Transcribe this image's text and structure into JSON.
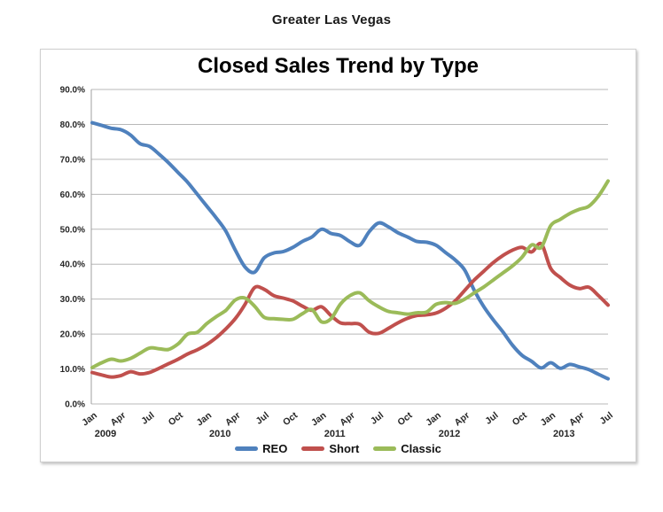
{
  "page": {
    "header_title": "Greater Las Vegas"
  },
  "chart": {
    "title": "Closed Sales Trend by Type",
    "grid_color": "#b8b8b8",
    "axis_color": "#9f9f9f"
  },
  "chart_data": {
    "type": "line",
    "title": "Closed Sales Trend by Type",
    "xlabel": "",
    "ylabel": "",
    "ylim": [
      0,
      90
    ],
    "y_tick_step": 10,
    "y_ticks": [
      "0.0%",
      "10.0%",
      "20.0%",
      "30.0%",
      "40.0%",
      "50.0%",
      "60.0%",
      "70.0%",
      "80.0%",
      "90.0%"
    ],
    "grid": true,
    "legend_position": "bottom",
    "x_tick_every": 3,
    "x_tick_labels": [
      "Jan",
      "Apr",
      "Jul",
      "Oct",
      "Jan",
      "Apr",
      "Jul",
      "Oct",
      "Jan",
      "Apr",
      "Jul",
      "Oct",
      "Jan",
      "Apr",
      "Jul",
      "Oct",
      "Jan",
      "Apr",
      "Jul"
    ],
    "year_labels": [
      {
        "label": "2009",
        "month_index": 0
      },
      {
        "label": "2010",
        "month_index": 12
      },
      {
        "label": "2011",
        "month_index": 24
      },
      {
        "label": "2012",
        "month_index": 36
      },
      {
        "label": "2013",
        "month_index": 48
      }
    ],
    "categories": [
      "Jan 2009",
      "Feb 2009",
      "Mar 2009",
      "Apr 2009",
      "May 2009",
      "Jun 2009",
      "Jul 2009",
      "Aug 2009",
      "Sep 2009",
      "Oct 2009",
      "Nov 2009",
      "Dec 2009",
      "Jan 2010",
      "Feb 2010",
      "Mar 2010",
      "Apr 2010",
      "May 2010",
      "Jun 2010",
      "Jul 2010",
      "Aug 2010",
      "Sep 2010",
      "Oct 2010",
      "Nov 2010",
      "Dec 2010",
      "Jan 2011",
      "Feb 2011",
      "Mar 2011",
      "Apr 2011",
      "May 2011",
      "Jun 2011",
      "Jul 2011",
      "Aug 2011",
      "Sep 2011",
      "Oct 2011",
      "Nov 2011",
      "Dec 2011",
      "Jan 2012",
      "Feb 2012",
      "Mar 2012",
      "Apr 2012",
      "May 2012",
      "Jun 2012",
      "Jul 2012",
      "Aug 2012",
      "Sep 2012",
      "Oct 2012",
      "Nov 2012",
      "Dec 2012",
      "Jan 2013",
      "Feb 2013",
      "Mar 2013",
      "Apr 2013",
      "May 2013",
      "Jun 2013",
      "Jul 2013"
    ],
    "series": [
      {
        "name": "REO",
        "color": "#4F81BD",
        "values": [
          80.5,
          79.7,
          78.9,
          78.5,
          77.0,
          74.5,
          73.7,
          71.5,
          69.0,
          66.2,
          63.4,
          60.0,
          56.6,
          53.2,
          49.4,
          43.9,
          39.2,
          37.7,
          41.8,
          43.2,
          43.6,
          44.8,
          46.5,
          47.8,
          50.0,
          48.8,
          48.2,
          46.4,
          45.4,
          49.3,
          51.8,
          50.7,
          49.0,
          47.8,
          46.5,
          46.3,
          45.4,
          43.3,
          41.2,
          38.3,
          32.5,
          27.8,
          24.0,
          20.6,
          16.8,
          13.9,
          12.2,
          10.3,
          11.8,
          10.2,
          11.3,
          10.6,
          9.8,
          8.5,
          7.2
        ]
      },
      {
        "name": "Short",
        "color": "#C0504D",
        "values": [
          9.0,
          8.3,
          7.7,
          8.1,
          9.2,
          8.6,
          9.0,
          10.2,
          11.5,
          12.8,
          14.3,
          15.5,
          17.0,
          19.0,
          21.5,
          24.5,
          28.5,
          33.3,
          32.8,
          31.0,
          30.3,
          29.5,
          28.0,
          26.8,
          27.8,
          25.3,
          23.2,
          23.0,
          22.8,
          20.5,
          20.2,
          21.6,
          23.2,
          24.5,
          25.3,
          25.5,
          26.0,
          27.4,
          29.5,
          32.5,
          35.5,
          38.0,
          40.5,
          42.5,
          44.0,
          44.8,
          43.5,
          45.8,
          38.8,
          36.2,
          34.0,
          33.0,
          33.4,
          31.0,
          28.3
        ]
      },
      {
        "name": "Classic",
        "color": "#9BBB59",
        "values": [
          10.4,
          11.8,
          12.8,
          12.3,
          13.0,
          14.5,
          16.0,
          15.8,
          15.6,
          17.2,
          20.0,
          20.5,
          23.0,
          25.0,
          26.8,
          29.8,
          30.3,
          28.0,
          24.8,
          24.4,
          24.2,
          24.2,
          25.8,
          27.0,
          23.5,
          24.4,
          28.6,
          31.0,
          31.8,
          29.5,
          27.8,
          26.5,
          26.1,
          25.7,
          26.1,
          26.3,
          28.5,
          29.0,
          28.8,
          30.0,
          31.8,
          33.5,
          35.5,
          37.5,
          39.5,
          42.0,
          45.5,
          44.8,
          51.0,
          52.8,
          54.5,
          55.7,
          56.6,
          59.5,
          63.8
        ]
      }
    ]
  }
}
